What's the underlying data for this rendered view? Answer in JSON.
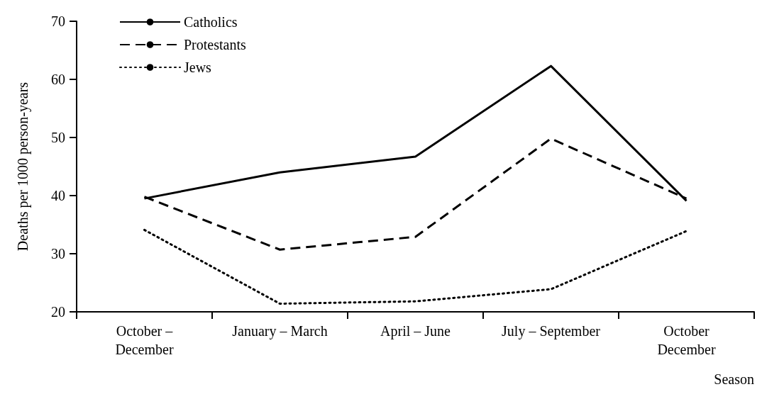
{
  "chart_data": {
    "type": "line",
    "xlabel": "Season",
    "ylabel": "Deaths per 1000 person-years",
    "categories": [
      "October –\nDecember",
      "January – March",
      "April – June",
      "July – September",
      "October\nDecember"
    ],
    "series": [
      {
        "name": "Catholics",
        "color": "#000000",
        "line_style": "solid",
        "values": [
          39.5,
          44.0,
          46.7,
          62.3,
          39.1
        ]
      },
      {
        "name": "Protestants",
        "color": "#000000",
        "line_style": "dashed",
        "values": [
          39.8,
          30.7,
          32.9,
          49.8,
          39.5
        ]
      },
      {
        "name": "Jews",
        "color": "#000000",
        "line_style": "dotted",
        "values": [
          34.1,
          21.4,
          21.8,
          23.9,
          33.9
        ]
      }
    ],
    "ylim": [
      20,
      70
    ],
    "yticks": [
      20,
      30,
      40,
      50,
      60,
      70
    ],
    "grid": false,
    "legend": "top left",
    "marker": "none"
  }
}
